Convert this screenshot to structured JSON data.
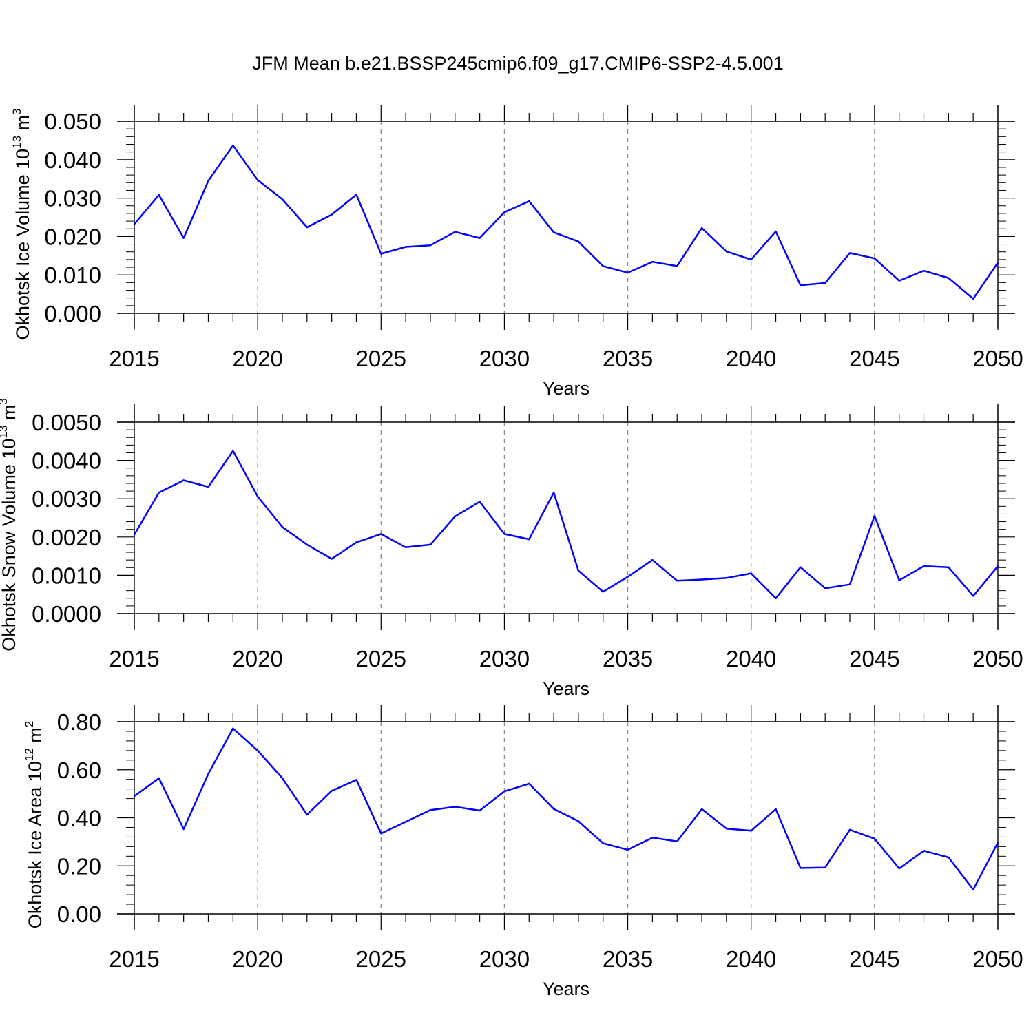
{
  "title": "JFM Mean b.e21.BSSP245cmip6.f09_g17.CMIP6-SSP2-4.5.001",
  "colors": {
    "line": "#0000ff",
    "grid": "#8c8c8c",
    "axis": "#000000"
  },
  "chart_data": [
    {
      "type": "line",
      "xlabel": "Years",
      "ylabel": {
        "text": "Okhotsk Ice Volume 10",
        "exp": "13",
        "unit": " m",
        "unit_exp": "3"
      },
      "xlim": [
        2015,
        2050
      ],
      "ylim": [
        0,
        0.05
      ],
      "y_ticks": [
        "0.000",
        "0.010",
        "0.020",
        "0.030",
        "0.040",
        "0.050"
      ],
      "x_ticks": [
        "2015",
        "2020",
        "2025",
        "2030",
        "2035",
        "2040",
        "2045",
        "2050"
      ],
      "grid": "vertical dashed at major x ticks",
      "series": [
        {
          "x": [
            2015,
            2016,
            2017,
            2018,
            2019,
            2020,
            2021,
            2022,
            2023,
            2024,
            2025,
            2026,
            2027,
            2028,
            2029,
            2030,
            2031,
            2032,
            2033,
            2034,
            2035,
            2036,
            2037,
            2038,
            2039,
            2040,
            2041,
            2042,
            2043,
            2044,
            2045,
            2046,
            2047,
            2048,
            2049,
            2050
          ],
          "values": [
            0.0232,
            0.0308,
            0.0196,
            0.0345,
            0.0437,
            0.0347,
            0.0297,
            0.0224,
            0.0257,
            0.0309,
            0.0155,
            0.0173,
            0.0177,
            0.0212,
            0.0196,
            0.0263,
            0.0292,
            0.0211,
            0.0187,
            0.0123,
            0.0106,
            0.0134,
            0.0123,
            0.0222,
            0.0161,
            0.014,
            0.0213,
            0.0073,
            0.0079,
            0.0157,
            0.0143,
            0.0085,
            0.0111,
            0.0092,
            0.0038,
            0.0132
          ]
        }
      ]
    },
    {
      "type": "line",
      "xlabel": "Years",
      "ylabel": {
        "text": "Okhotsk Snow Volume 10",
        "exp": "13",
        "unit": " m",
        "unit_exp": "3"
      },
      "xlim": [
        2015,
        2050
      ],
      "ylim": [
        0,
        0.005
      ],
      "y_ticks": [
        "0.0000",
        "0.0010",
        "0.0020",
        "0.0030",
        "0.0040",
        "0.0050"
      ],
      "x_ticks": [
        "2015",
        "2020",
        "2025",
        "2030",
        "2035",
        "2040",
        "2045",
        "2050"
      ],
      "grid": "vertical dashed at major x ticks",
      "series": [
        {
          "x": [
            2015,
            2016,
            2017,
            2018,
            2019,
            2020,
            2021,
            2022,
            2023,
            2024,
            2025,
            2026,
            2027,
            2028,
            2029,
            2030,
            2031,
            2032,
            2033,
            2034,
            2035,
            2036,
            2037,
            2038,
            2039,
            2040,
            2041,
            2042,
            2043,
            2044,
            2045,
            2046,
            2047,
            2048,
            2049,
            2050
          ],
          "values": [
            0.00206,
            0.00316,
            0.00348,
            0.00331,
            0.00425,
            0.00306,
            0.00226,
            0.0018,
            0.00143,
            0.00186,
            0.00208,
            0.00173,
            0.0018,
            0.00254,
            0.00292,
            0.00208,
            0.00194,
            0.00316,
            0.00112,
            0.00057,
            0.00096,
            0.0014,
            0.00086,
            0.00089,
            0.00093,
            0.00105,
            0.0004,
            0.00121,
            0.00066,
            0.00076,
            0.00255,
            0.00087,
            0.00124,
            0.00121,
            0.00046,
            0.00124
          ]
        }
      ]
    },
    {
      "type": "line",
      "xlabel": "Years",
      "ylabel": {
        "text": "Okhotsk Ice Area 10",
        "exp": "12",
        "unit": " m",
        "unit_exp": "2"
      },
      "xlim": [
        2015,
        2050
      ],
      "ylim": [
        0,
        0.8
      ],
      "y_ticks": [
        "0.00",
        "0.20",
        "0.40",
        "0.60",
        "0.80"
      ],
      "x_ticks": [
        "2015",
        "2020",
        "2025",
        "2030",
        "2035",
        "2040",
        "2045",
        "2050"
      ],
      "grid": "vertical dashed at major x ticks",
      "series": [
        {
          "x": [
            2015,
            2016,
            2017,
            2018,
            2019,
            2020,
            2021,
            2022,
            2023,
            2024,
            2025,
            2026,
            2027,
            2028,
            2029,
            2030,
            2031,
            2032,
            2033,
            2034,
            2035,
            2036,
            2037,
            2038,
            2039,
            2040,
            2041,
            2042,
            2043,
            2044,
            2045,
            2046,
            2047,
            2048,
            2049,
            2050
          ],
          "values": [
            0.49,
            0.565,
            0.353,
            0.583,
            0.772,
            0.68,
            0.565,
            0.413,
            0.512,
            0.558,
            0.335,
            0.383,
            0.432,
            0.446,
            0.43,
            0.51,
            0.542,
            0.437,
            0.386,
            0.294,
            0.267,
            0.317,
            0.302,
            0.436,
            0.355,
            0.346,
            0.436,
            0.191,
            0.193,
            0.35,
            0.313,
            0.189,
            0.263,
            0.235,
            0.101,
            0.297
          ]
        }
      ]
    }
  ]
}
